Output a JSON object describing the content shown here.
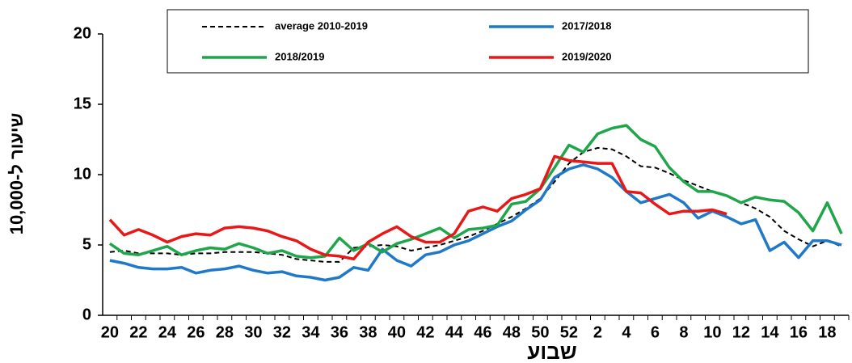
{
  "chart_data": {
    "type": "line",
    "ylabel": "שיעור ל-10,000",
    "xlabel": "שבוע",
    "categories": [
      "20",
      null,
      "22",
      null,
      "24",
      null,
      "26",
      null,
      "28",
      null,
      "30",
      null,
      "32",
      null,
      "34",
      null,
      "36",
      null,
      "38",
      null,
      "40",
      null,
      "42",
      null,
      "44",
      null,
      "46",
      null,
      "48",
      null,
      "50",
      null,
      "52",
      null,
      "2",
      null,
      "4",
      null,
      "6",
      null,
      "8",
      null,
      "10",
      null,
      "12",
      null,
      "14",
      null,
      "16",
      null,
      "18",
      null
    ],
    "ylim": [
      0,
      20
    ],
    "yticks": [
      0,
      5,
      10,
      15,
      20
    ],
    "grid": false,
    "series": [
      {
        "name": "average 2010-2019",
        "color": "#000000",
        "dash": true,
        "values": [
          4.5,
          4.6,
          4.4,
          4.4,
          4.4,
          4.3,
          4.4,
          4.4,
          4.5,
          4.5,
          4.5,
          4.4,
          4.3,
          4.0,
          3.9,
          3.8,
          3.8,
          4.8,
          4.9,
          5.0,
          4.9,
          4.6,
          4.8,
          5.0,
          5.3,
          5.6,
          6.0,
          6.5,
          7.0,
          7.6,
          8.3,
          9.5,
          10.8,
          11.6,
          11.9,
          11.8,
          11.3,
          10.6,
          10.5,
          10.1,
          9.6,
          9.2,
          8.8,
          8.5,
          8.0,
          7.6,
          7.0,
          6.0,
          5.4,
          4.9,
          5.3,
          4.9
        ]
      },
      {
        "name": "2017/2018",
        "color": "#1f78c8",
        "dash": false,
        "values": [
          3.9,
          3.7,
          3.4,
          3.3,
          3.3,
          3.4,
          3.0,
          3.2,
          3.3,
          3.5,
          3.2,
          3.0,
          3.1,
          2.8,
          2.7,
          2.5,
          2.7,
          3.4,
          3.2,
          4.7,
          3.9,
          3.5,
          4.3,
          4.5,
          5.0,
          5.3,
          5.8,
          6.3,
          6.7,
          7.5,
          8.2,
          9.8,
          10.4,
          10.7,
          10.4,
          9.8,
          8.8,
          8.0,
          8.3,
          8.6,
          8.0,
          6.9,
          7.4,
          7.0,
          6.5,
          6.8,
          4.6,
          5.2,
          4.1,
          5.3,
          5.3,
          5.0
        ]
      },
      {
        "name": "2018/2019",
        "color": "#1fa64a",
        "dash": false,
        "values": [
          5.1,
          4.4,
          4.3,
          4.6,
          4.9,
          4.3,
          4.6,
          4.8,
          4.7,
          5.1,
          4.8,
          4.4,
          4.6,
          4.2,
          4.1,
          4.2,
          5.5,
          4.6,
          5.1,
          4.5,
          5.1,
          5.4,
          5.8,
          6.2,
          5.5,
          6.1,
          6.2,
          6.4,
          7.9,
          8.1,
          9.0,
          10.5,
          12.1,
          11.6,
          12.9,
          13.3,
          13.5,
          12.5,
          12.0,
          10.5,
          9.5,
          8.8,
          8.8,
          8.5,
          8.0,
          8.4,
          8.2,
          8.1,
          7.3,
          6.0,
          8.0,
          5.8
        ]
      },
      {
        "name": "2019/2020",
        "color": "#e81818",
        "dash": false,
        "values": [
          6.8,
          5.7,
          6.1,
          5.7,
          5.2,
          5.6,
          5.8,
          5.7,
          6.2,
          6.3,
          6.2,
          6.0,
          5.6,
          5.3,
          4.7,
          4.3,
          4.2,
          4.0,
          5.2,
          5.8,
          6.3,
          5.6,
          5.2,
          5.2,
          5.8,
          7.4,
          7.7,
          7.4,
          8.3,
          8.6,
          9.0,
          11.3,
          11.0,
          10.9,
          10.8,
          10.8,
          8.8,
          8.7,
          7.9,
          7.2,
          7.4,
          7.4,
          7.5,
          7.2,
          null,
          null,
          null,
          null,
          null,
          null,
          null,
          null
        ]
      }
    ]
  }
}
